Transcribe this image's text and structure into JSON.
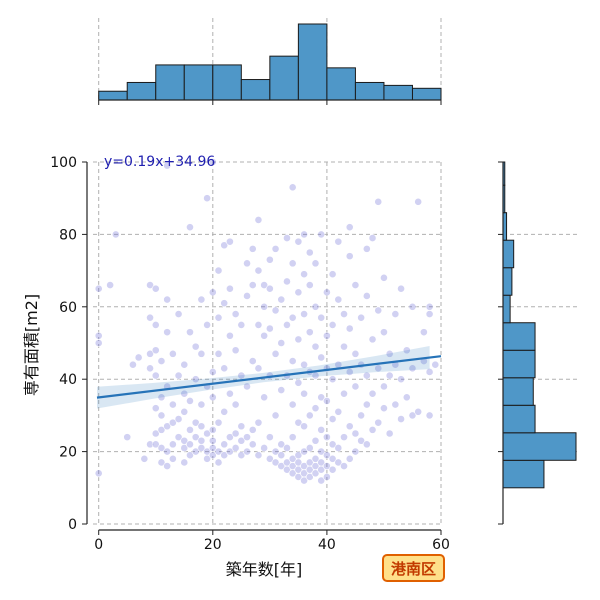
{
  "chart_data": {
    "type": "scatter",
    "xlabel": "築年数[年]",
    "ylabel": "専有面積[m2]",
    "xlim": [
      -1,
      60
    ],
    "ylim": [
      0,
      100
    ],
    "x_ticks": [
      0,
      20,
      40,
      60
    ],
    "y_ticks": [
      0,
      20,
      40,
      60,
      80,
      100
    ],
    "grid": true,
    "regression": {
      "label": "y=0.19x+34.96",
      "slope": 0.19,
      "intercept": 34.96,
      "ci_half_width": [
        3.0,
        2.2,
        1.6,
        1.3,
        1.5,
        2.2,
        3.2
      ]
    },
    "badge": "港南区",
    "marginal_x": {
      "bin_edges": [
        0,
        5,
        10,
        15,
        20,
        25,
        30,
        35,
        40,
        45,
        50,
        55,
        60
      ],
      "counts": [
        3,
        6,
        12,
        12,
        12,
        7,
        15,
        26,
        11,
        6,
        5,
        4
      ]
    },
    "marginal_y": {
      "bin_edges": [
        10,
        17.6,
        25.2,
        32.8,
        40.4,
        48,
        55.6,
        63.2,
        70.8,
        78.4,
        86,
        93.6,
        101.2
      ],
      "counts": [
        23,
        41,
        18,
        17,
        18,
        18,
        4,
        5,
        6,
        2,
        1,
        1
      ]
    },
    "points": [
      [
        0,
        14
      ],
      [
        0,
        50
      ],
      [
        0,
        52
      ],
      [
        0,
        65
      ],
      [
        2,
        66
      ],
      [
        3,
        80
      ],
      [
        5,
        24
      ],
      [
        6,
        44
      ],
      [
        7,
        46
      ],
      [
        8,
        18
      ],
      [
        9,
        22
      ],
      [
        9,
        43
      ],
      [
        9,
        47
      ],
      [
        9,
        57
      ],
      [
        9,
        66
      ],
      [
        10,
        22
      ],
      [
        10,
        25
      ],
      [
        10,
        32
      ],
      [
        10,
        41
      ],
      [
        10,
        48
      ],
      [
        10,
        55
      ],
      [
        10,
        65
      ],
      [
        11,
        17
      ],
      [
        11,
        21
      ],
      [
        11,
        26
      ],
      [
        11,
        30
      ],
      [
        11,
        35
      ],
      [
        11,
        45
      ],
      [
        12,
        16
      ],
      [
        12,
        20
      ],
      [
        12,
        27
      ],
      [
        12,
        38
      ],
      [
        12,
        53
      ],
      [
        12,
        62
      ],
      [
        12,
        99
      ],
      [
        13,
        18
      ],
      [
        13,
        22
      ],
      [
        13,
        28
      ],
      [
        13,
        33
      ],
      [
        13,
        47
      ],
      [
        14,
        24
      ],
      [
        14,
        29
      ],
      [
        14,
        41
      ],
      [
        14,
        58
      ],
      [
        15,
        17
      ],
      [
        15,
        21
      ],
      [
        15,
        23
      ],
      [
        15,
        31
      ],
      [
        15,
        36
      ],
      [
        15,
        44
      ],
      [
        16,
        19
      ],
      [
        16,
        22
      ],
      [
        16,
        26
      ],
      [
        16,
        34
      ],
      [
        16,
        53
      ],
      [
        16,
        82
      ],
      [
        17,
        20
      ],
      [
        17,
        24
      ],
      [
        17,
        28
      ],
      [
        17,
        40
      ],
      [
        17,
        49
      ],
      [
        18,
        21
      ],
      [
        18,
        23
      ],
      [
        18,
        27
      ],
      [
        18,
        33
      ],
      [
        18,
        47
      ],
      [
        18,
        62
      ],
      [
        19,
        18
      ],
      [
        19,
        20
      ],
      [
        19,
        25
      ],
      [
        19,
        38
      ],
      [
        19,
        55
      ],
      [
        19,
        90
      ],
      [
        20,
        19
      ],
      [
        20,
        21
      ],
      [
        20,
        23
      ],
      [
        20,
        26
      ],
      [
        20,
        35
      ],
      [
        20,
        42
      ],
      [
        20,
        64
      ],
      [
        20,
        100
      ],
      [
        21,
        17
      ],
      [
        21,
        20
      ],
      [
        21,
        28
      ],
      [
        21,
        47
      ],
      [
        21,
        57
      ],
      [
        21,
        70
      ],
      [
        22,
        19
      ],
      [
        22,
        22
      ],
      [
        22,
        31
      ],
      [
        22,
        43
      ],
      [
        22,
        61
      ],
      [
        22,
        77
      ],
      [
        23,
        20
      ],
      [
        23,
        24
      ],
      [
        23,
        36
      ],
      [
        23,
        52
      ],
      [
        23,
        65
      ],
      [
        23,
        78
      ],
      [
        24,
        21
      ],
      [
        24,
        25
      ],
      [
        24,
        33
      ],
      [
        24,
        48
      ],
      [
        24,
        58
      ],
      [
        25,
        19
      ],
      [
        25,
        23
      ],
      [
        25,
        27
      ],
      [
        25,
        41
      ],
      [
        25,
        55
      ],
      [
        26,
        20
      ],
      [
        26,
        24
      ],
      [
        26,
        38
      ],
      [
        26,
        63
      ],
      [
        26,
        72
      ],
      [
        27,
        22
      ],
      [
        27,
        26
      ],
      [
        27,
        45
      ],
      [
        27,
        66
      ],
      [
        27,
        76
      ],
      [
        28,
        19
      ],
      [
        28,
        28
      ],
      [
        28,
        43
      ],
      [
        28,
        55
      ],
      [
        28,
        70
      ],
      [
        28,
        84
      ],
      [
        29,
        21
      ],
      [
        29,
        35
      ],
      [
        29,
        52
      ],
      [
        29,
        60
      ],
      [
        29,
        66
      ],
      [
        30,
        18
      ],
      [
        30,
        24
      ],
      [
        30,
        41
      ],
      [
        30,
        54
      ],
      [
        30,
        65
      ],
      [
        30,
        73
      ],
      [
        31,
        17
      ],
      [
        31,
        20
      ],
      [
        31,
        30
      ],
      [
        31,
        47
      ],
      [
        31,
        59
      ],
      [
        31,
        76
      ],
      [
        32,
        16
      ],
      [
        32,
        19
      ],
      [
        32,
        22
      ],
      [
        32,
        37
      ],
      [
        32,
        50
      ],
      [
        32,
        62
      ],
      [
        33,
        15
      ],
      [
        33,
        17
      ],
      [
        33,
        21
      ],
      [
        33,
        41
      ],
      [
        33,
        55
      ],
      [
        33,
        67
      ],
      [
        33,
        79
      ],
      [
        34,
        14
      ],
      [
        34,
        16
      ],
      [
        34,
        18
      ],
      [
        34,
        24
      ],
      [
        34,
        33
      ],
      [
        34,
        45
      ],
      [
        34,
        57
      ],
      [
        34,
        72
      ],
      [
        34,
        93
      ],
      [
        35,
        13
      ],
      [
        35,
        15
      ],
      [
        35,
        17
      ],
      [
        35,
        19
      ],
      [
        35,
        28
      ],
      [
        35,
        39
      ],
      [
        35,
        51
      ],
      [
        35,
        64
      ],
      [
        35,
        78
      ],
      [
        36,
        12
      ],
      [
        36,
        14
      ],
      [
        36,
        16
      ],
      [
        36,
        20
      ],
      [
        36,
        27
      ],
      [
        36,
        36
      ],
      [
        36,
        44
      ],
      [
        36,
        58
      ],
      [
        36,
        69
      ],
      [
        36,
        80
      ],
      [
        37,
        13
      ],
      [
        37,
        15
      ],
      [
        37,
        17
      ],
      [
        37,
        21
      ],
      [
        37,
        30
      ],
      [
        37,
        42
      ],
      [
        37,
        53
      ],
      [
        37,
        66
      ],
      [
        37,
        75
      ],
      [
        38,
        14
      ],
      [
        38,
        16
      ],
      [
        38,
        18
      ],
      [
        38,
        23
      ],
      [
        38,
        32
      ],
      [
        38,
        41
      ],
      [
        38,
        49
      ],
      [
        38,
        60
      ],
      [
        38,
        72
      ],
      [
        39,
        12
      ],
      [
        39,
        15
      ],
      [
        39,
        17
      ],
      [
        39,
        20
      ],
      [
        39,
        26
      ],
      [
        39,
        35
      ],
      [
        39,
        46
      ],
      [
        39,
        57
      ],
      [
        39,
        80
      ],
      [
        40,
        13
      ],
      [
        40,
        16
      ],
      [
        40,
        19
      ],
      [
        40,
        24
      ],
      [
        40,
        34
      ],
      [
        40,
        43
      ],
      [
        40,
        52
      ],
      [
        40,
        64
      ],
      [
        41,
        15
      ],
      [
        41,
        18
      ],
      [
        41,
        22
      ],
      [
        41,
        29
      ],
      [
        41,
        40
      ],
      [
        41,
        55
      ],
      [
        41,
        69
      ],
      [
        42,
        17
      ],
      [
        42,
        21
      ],
      [
        42,
        31
      ],
      [
        42,
        44
      ],
      [
        42,
        62
      ],
      [
        42,
        78
      ],
      [
        43,
        16
      ],
      [
        43,
        24
      ],
      [
        43,
        36
      ],
      [
        43,
        49
      ],
      [
        43,
        58
      ],
      [
        44,
        18
      ],
      [
        44,
        27
      ],
      [
        44,
        42
      ],
      [
        44,
        54
      ],
      [
        44,
        74
      ],
      [
        44,
        82
      ],
      [
        45,
        20
      ],
      [
        45,
        25
      ],
      [
        45,
        38
      ],
      [
        45,
        47
      ],
      [
        45,
        66
      ],
      [
        46,
        23
      ],
      [
        46,
        30
      ],
      [
        46,
        44
      ],
      [
        46,
        57
      ],
      [
        47,
        22
      ],
      [
        47,
        33
      ],
      [
        47,
        41
      ],
      [
        47,
        63
      ],
      [
        47,
        76
      ],
      [
        48,
        26
      ],
      [
        48,
        36
      ],
      [
        48,
        51
      ],
      [
        48,
        79
      ],
      [
        49,
        28
      ],
      [
        49,
        43
      ],
      [
        49,
        59
      ],
      [
        49,
        89
      ],
      [
        50,
        32
      ],
      [
        50,
        38
      ],
      [
        50,
        53
      ],
      [
        50,
        68
      ],
      [
        51,
        25
      ],
      [
        51,
        41
      ],
      [
        51,
        47
      ],
      [
        52,
        33
      ],
      [
        52,
        44
      ],
      [
        52,
        58
      ],
      [
        53,
        29
      ],
      [
        53,
        40
      ],
      [
        53,
        65
      ],
      [
        54,
        35
      ],
      [
        54,
        48
      ],
      [
        55,
        30
      ],
      [
        55,
        43
      ],
      [
        55,
        60
      ],
      [
        56,
        31
      ],
      [
        56,
        89
      ],
      [
        57,
        45
      ],
      [
        57,
        53
      ],
      [
        58,
        30
      ],
      [
        58,
        42
      ],
      [
        58,
        58
      ],
      [
        58,
        60
      ],
      [
        59,
        44
      ]
    ]
  }
}
